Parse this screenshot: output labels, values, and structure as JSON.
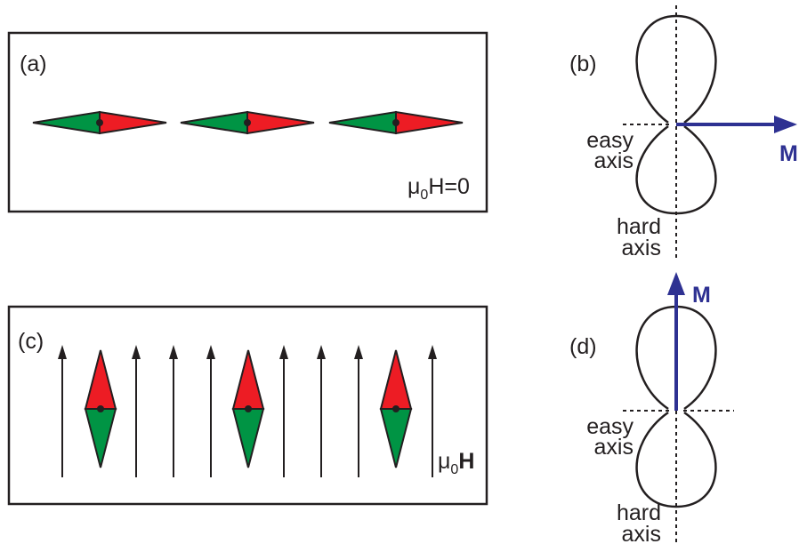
{
  "panels": [
    {
      "label": "(a)",
      "field": {
        "symbol": "μ",
        "subscript": "0",
        "text": "H=0"
      }
    },
    {
      "label": "(b)",
      "easy_axis": [
        "easy",
        "axis"
      ],
      "hard_axis": [
        "hard",
        "axis"
      ],
      "vector": "M"
    },
    {
      "label": "(c)",
      "field": {
        "symbol": "μ",
        "subscript": "0",
        "text": "H"
      }
    },
    {
      "label": "(d)",
      "easy_axis": [
        "easy",
        "axis"
      ],
      "hard_axis": [
        "hard",
        "axis"
      ],
      "vector": "M"
    }
  ]
}
